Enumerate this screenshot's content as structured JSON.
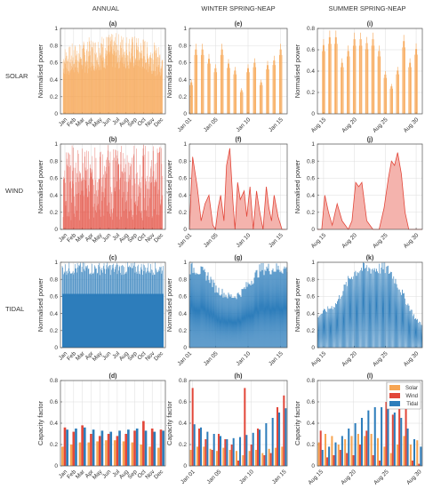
{
  "columns": [
    "ANNUAL",
    "WINTER SPRING-NEAP",
    "SUMMER SPRING-NEAP"
  ],
  "rows": [
    "SOLAR",
    "WIND",
    "TIDAL"
  ],
  "colors": {
    "solar": "#f7a552",
    "wind": "#e2473a",
    "wind_fill": "#f4b3ad",
    "tidal": "#2d7dbb",
    "grid": "#dddddd",
    "axis": "#555555"
  },
  "chart_data": [
    {
      "id": "a",
      "title": "(a)",
      "type": "bar",
      "ylabel": "Normalised power",
      "ylim": [
        0,
        1
      ],
      "yticks": [
        "0",
        "0.2",
        "0.4",
        "0.6",
        "0.8",
        "1"
      ],
      "xticks": [
        "Jan",
        "Feb",
        "Mar",
        "Apr",
        "May",
        "Jun",
        "Jul",
        "Aug",
        "Sep",
        "Oct",
        "Nov",
        "Dec"
      ],
      "color": "#f7a552",
      "envelope": [
        0.8,
        0.83,
        0.86,
        0.9,
        0.93,
        0.94,
        0.95,
        0.94,
        0.92,
        0.9,
        0.85,
        0.8
      ]
    },
    {
      "id": "e",
      "title": "(e)",
      "type": "bar",
      "ylabel": "Normalised power",
      "ylim": [
        0,
        1
      ],
      "yticks": [
        "0",
        "0.2",
        "0.4",
        "0.6",
        "0.8",
        "1"
      ],
      "xticks": [
        "Jan 01",
        "Jan 05",
        "Jan 10",
        "Jan 15"
      ],
      "xrange": [
        1,
        16
      ],
      "x": [
        1.3,
        2,
        3,
        4,
        5,
        6,
        7,
        8,
        9,
        10,
        11,
        12,
        13,
        14,
        15
      ],
      "values": [
        0.4,
        0.82,
        0.82,
        0.7,
        0.58,
        0.82,
        0.64,
        0.55,
        0.3,
        0.58,
        0.65,
        0.4,
        0.62,
        0.68,
        0.82
      ],
      "color": "#f7a552"
    },
    {
      "id": "i",
      "title": "(i)",
      "type": "bar",
      "ylabel": "Normalised power",
      "ylim": [
        0,
        0.8
      ],
      "yticks": [
        "0",
        "0.2",
        "0.4",
        "0.6",
        "0.8"
      ],
      "xticks": [
        "Aug 15",
        "Aug 20",
        "Aug 25",
        "Aug 30"
      ],
      "xrange": [
        14,
        31
      ],
      "x": [
        15,
        16,
        17,
        18,
        19,
        20,
        21,
        22,
        23,
        24,
        25,
        26,
        27,
        28,
        29,
        30
      ],
      "values": [
        0.7,
        0.78,
        0.78,
        0.52,
        0.64,
        0.76,
        0.76,
        0.72,
        0.76,
        0.64,
        0.4,
        0.28,
        0.44,
        0.74,
        0.52,
        0.66
      ],
      "color": "#f7a552"
    },
    {
      "id": "b",
      "title": "(b)",
      "type": "bar",
      "ylabel": "Normalised power",
      "ylim": [
        0,
        1
      ],
      "yticks": [
        "0",
        "0.2",
        "0.4",
        "0.6",
        "0.8",
        "1"
      ],
      "xticks": [
        "Jan",
        "Feb",
        "Mar",
        "Apr",
        "May",
        "Jun",
        "Jul",
        "Aug",
        "Sep",
        "Oct",
        "Nov",
        "Dec"
      ],
      "color": "#e2473a"
    },
    {
      "id": "f",
      "title": "(f)",
      "type": "area",
      "ylabel": "Normalised power",
      "ylim": [
        0,
        1
      ],
      "yticks": [
        "0",
        "0.2",
        "0.4",
        "0.6",
        "0.8",
        "1"
      ],
      "xticks": [
        "Jan 01",
        "Jan 05",
        "Jan 10",
        "Jan 15"
      ],
      "xrange": [
        1,
        16
      ],
      "x": [
        1.0,
        1.5,
        2.2,
        2.8,
        3.4,
        4.0,
        4.6,
        5.0,
        5.4,
        5.8,
        6.3,
        6.7,
        7.2,
        7.7,
        8.0,
        8.4,
        8.8,
        9.4,
        9.8,
        10.3,
        10.8,
        11.3,
        11.8,
        12.3,
        12.8,
        13.2,
        13.6,
        14.0,
        14.6,
        15.2,
        15.8
      ],
      "values": [
        0.0,
        0.85,
        0.5,
        0.1,
        0.3,
        0.4,
        0.05,
        0.0,
        0.25,
        0.4,
        0.1,
        0.75,
        0.95,
        0.3,
        0.0,
        0.55,
        0.35,
        0.45,
        0.15,
        0.5,
        0.0,
        0.45,
        0.2,
        0.0,
        0.5,
        0.25,
        0.1,
        0.4,
        0.15,
        0.0,
        0.0
      ],
      "color": "#e2473a"
    },
    {
      "id": "j",
      "title": "(j)",
      "type": "area",
      "ylabel": "Normalised power",
      "ylim": [
        0,
        1
      ],
      "yticks": [
        "0",
        "0.2",
        "0.4",
        "0.6",
        "0.8",
        "1"
      ],
      "xticks": [
        "Aug 15",
        "Aug 20",
        "Aug 25",
        "Aug 30"
      ],
      "xrange": [
        14,
        31
      ],
      "x": [
        14.0,
        14.7,
        15.2,
        15.8,
        16.4,
        17.2,
        18.0,
        19.0,
        19.6,
        20.2,
        20.7,
        21.2,
        22.0,
        23.0,
        24.0,
        24.8,
        25.5,
        26.0,
        26.5,
        27.0,
        27.6,
        28.2,
        28.8,
        29.4,
        30.0,
        31.0
      ],
      "values": [
        0.0,
        0.0,
        0.4,
        0.2,
        0.05,
        0.3,
        0.1,
        0.0,
        0.1,
        0.55,
        0.5,
        0.55,
        0.1,
        0.0,
        0.0,
        0.25,
        0.6,
        0.8,
        0.75,
        0.9,
        0.65,
        0.2,
        0.0,
        0.0,
        0.0,
        0.0
      ],
      "color": "#e2473a"
    },
    {
      "id": "c",
      "title": "(c)",
      "type": "bar",
      "ylabel": "Normalised power",
      "ylim": [
        0,
        1
      ],
      "yticks": [
        "0",
        "0.2",
        "0.4",
        "0.6",
        "0.8",
        "1"
      ],
      "xticks": [
        "Jan",
        "Feb",
        "Mar",
        "Apr",
        "May",
        "Jun",
        "Jul",
        "Aug",
        "Sep",
        "Oct",
        "Nov",
        "Dec"
      ],
      "color": "#2d7dbb"
    },
    {
      "id": "g",
      "title": "(g)",
      "type": "line",
      "ylabel": "Normalised power",
      "ylim": [
        0,
        1
      ],
      "yticks": [
        "0",
        "0.2",
        "0.4",
        "0.6",
        "0.8",
        "1"
      ],
      "xticks": [
        "Jan 01",
        "Jan 05",
        "Jan 10",
        "Jan 15"
      ],
      "xrange": [
        1,
        16
      ],
      "x": [
        1,
        2,
        3,
        4,
        5,
        6,
        7,
        8,
        9,
        10,
        11,
        12,
        13,
        14,
        15,
        16
      ],
      "values": [
        1.0,
        1.0,
        0.95,
        0.9,
        0.75,
        0.7,
        0.65,
        0.65,
        0.7,
        0.8,
        0.9,
        1.0,
        1.0,
        1.0,
        1.0,
        1.0
      ],
      "color": "#2d7dbb"
    },
    {
      "id": "k",
      "title": "(k)",
      "type": "line",
      "ylabel": "Normalised power",
      "ylim": [
        0,
        1
      ],
      "yticks": [
        "0",
        "0.2",
        "0.4",
        "0.6",
        "0.8",
        "1"
      ],
      "xticks": [
        "Aug 15",
        "Aug 20",
        "Aug 25",
        "Aug 30"
      ],
      "xrange": [
        14,
        31
      ],
      "x": [
        14,
        15,
        16,
        17,
        18,
        19,
        20,
        21,
        22,
        23,
        24,
        25,
        26,
        27,
        28,
        29,
        30,
        31
      ],
      "values": [
        0.4,
        0.45,
        0.5,
        0.55,
        0.7,
        0.85,
        0.95,
        1.0,
        1.0,
        1.0,
        1.0,
        1.0,
        0.95,
        0.8,
        0.65,
        0.5,
        0.35,
        0.3
      ],
      "color": "#2d7dbb"
    },
    {
      "id": "d",
      "title": "(d)",
      "type": "bar",
      "ylabel": "Capacity factor",
      "ylim": [
        0,
        0.8
      ],
      "yticks": [
        "0",
        "0.2",
        "0.4",
        "0.6",
        "0.8"
      ],
      "xticks": [
        "Jan",
        "Feb",
        "Mar",
        "Apr",
        "May",
        "Jun",
        "Jul",
        "Aug",
        "Sep",
        "Oct",
        "Nov",
        "Dec"
      ],
      "categories": [
        "Jan",
        "Feb",
        "Mar",
        "Apr",
        "May",
        "Jun",
        "Jul",
        "Aug",
        "Sep",
        "Oct",
        "Nov",
        "Dec"
      ],
      "series": [
        {
          "name": "Solar",
          "values": [
            0.18,
            0.2,
            0.22,
            0.22,
            0.23,
            0.24,
            0.24,
            0.23,
            0.22,
            0.2,
            0.18,
            0.17
          ],
          "color": "#f7a552"
        },
        {
          "name": "Wind",
          "values": [
            0.36,
            0.32,
            0.38,
            0.3,
            0.28,
            0.3,
            0.28,
            0.3,
            0.33,
            0.42,
            0.35,
            0.34
          ],
          "color": "#e2473a"
        },
        {
          "name": "Tidal",
          "values": [
            0.34,
            0.35,
            0.36,
            0.34,
            0.33,
            0.32,
            0.33,
            0.34,
            0.35,
            0.33,
            0.32,
            0.33
          ],
          "color": "#2d7dbb"
        }
      ]
    },
    {
      "id": "h",
      "title": "(h)",
      "type": "bar",
      "ylabel": "Capacity factor",
      "ylim": [
        0,
        0.8
      ],
      "yticks": [
        "0",
        "0.2",
        "0.4",
        "0.6",
        "0.8"
      ],
      "xticks": [
        "Jan 01",
        "Jan 05",
        "Jan 10",
        "Jan 15"
      ],
      "xrange": [
        0.5,
        15.5
      ],
      "categories": [
        "1",
        "2",
        "3",
        "4",
        "5",
        "6",
        "7",
        "8",
        "9",
        "10",
        "11",
        "12",
        "13",
        "14",
        "15"
      ],
      "series": [
        {
          "name": "Solar",
          "values": [
            0.15,
            0.18,
            0.18,
            0.16,
            0.14,
            0.17,
            0.15,
            0.14,
            0.1,
            0.14,
            0.15,
            0.12,
            0.16,
            0.17,
            0.18
          ],
          "color": "#f7a552"
        },
        {
          "name": "Wind",
          "values": [
            0.73,
            0.35,
            0.25,
            0.15,
            0.3,
            0.25,
            0.2,
            0.05,
            0.73,
            0.2,
            0.35,
            0.1,
            0.12,
            0.55,
            0.66
          ],
          "color": "#e2473a"
        },
        {
          "name": "Tidal",
          "values": [
            0.39,
            0.36,
            0.32,
            0.3,
            0.28,
            0.25,
            0.26,
            0.27,
            0.29,
            0.31,
            0.34,
            0.4,
            0.45,
            0.5,
            0.54
          ],
          "color": "#2d7dbb"
        }
      ]
    },
    {
      "id": "l",
      "title": "(l)",
      "type": "bar",
      "ylabel": "Capacity factor",
      "ylim": [
        0,
        0.8
      ],
      "yticks": [
        "0",
        "0.2",
        "0.4",
        "0.6",
        "0.8"
      ],
      "xticks": [
        "Aug 15",
        "Aug 20",
        "Aug 25",
        "Aug 30"
      ],
      "xrange": [
        14.5,
        30.5
      ],
      "categories": [
        "15",
        "16",
        "17",
        "18",
        "19",
        "20",
        "21",
        "22",
        "23",
        "24",
        "25",
        "26",
        "27",
        "28",
        "29",
        "30"
      ],
      "series": [
        {
          "name": "Solar",
          "values": [
            0.22,
            0.3,
            0.28,
            0.2,
            0.25,
            0.28,
            0.3,
            0.28,
            0.3,
            0.26,
            0.18,
            0.12,
            0.2,
            0.28,
            0.2,
            0.24
          ],
          "color": "#f7a552"
        },
        {
          "name": "Wind",
          "values": [
            0.33,
            0.08,
            0.1,
            0.15,
            0.12,
            0.1,
            0.2,
            0.33,
            0.1,
            0.05,
            0.6,
            0.48,
            0.68,
            0.75,
            0.05,
            0.02
          ],
          "color": "#e2473a"
        },
        {
          "name": "Tidal",
          "values": [
            0.15,
            0.18,
            0.22,
            0.28,
            0.35,
            0.4,
            0.45,
            0.52,
            0.55,
            0.55,
            0.55,
            0.5,
            0.45,
            0.35,
            0.25,
            0.18
          ],
          "color": "#2d7dbb"
        }
      ],
      "legend": "top-right"
    }
  ]
}
